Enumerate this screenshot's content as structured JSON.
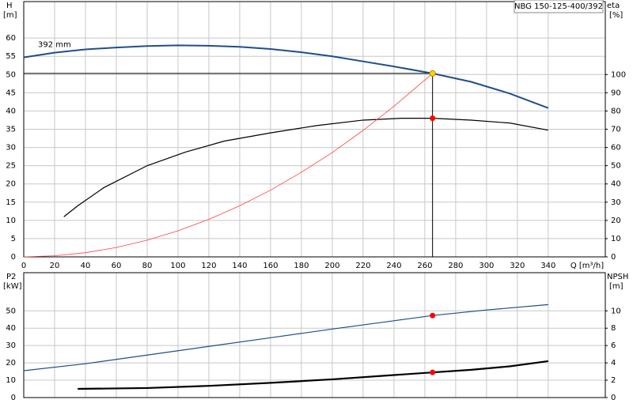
{
  "chart_data": [
    {
      "type": "line",
      "title": "NBG 150-125-400/392",
      "ylabel": "H",
      "ylabel_unit": "[m]",
      "y2label": "eta",
      "y2label_unit": "[%]",
      "xlabel": "Q [m³/h]",
      "xlim": [
        0,
        377
      ],
      "xticks": [
        0,
        20,
        40,
        60,
        80,
        100,
        120,
        140,
        160,
        180,
        200,
        220,
        240,
        260,
        280,
        300,
        320,
        340
      ],
      "ylim": [
        0,
        70
      ],
      "yticks": [
        0,
        5,
        10,
        15,
        20,
        25,
        30,
        35,
        40,
        45,
        50,
        55,
        60
      ],
      "y2lim": [
        0,
        140
      ],
      "y2ticks": [
        0,
        10,
        20,
        30,
        40,
        50,
        60,
        70,
        80,
        90,
        100
      ],
      "grid": true,
      "series": [
        {
          "name": "392 mm",
          "color": "#1f4e8c",
          "width": 2,
          "x": [
            0,
            20,
            40,
            60,
            80,
            100,
            120,
            140,
            160,
            180,
            200,
            220,
            240,
            265,
            290,
            315,
            340
          ],
          "values": [
            54.7,
            56,
            56.9,
            57.4,
            57.8,
            58,
            57.9,
            57.6,
            57,
            56.1,
            55,
            53.6,
            52.2,
            50.3,
            48,
            44.8,
            40.8
          ]
        },
        {
          "color": "#000000",
          "width": 1.2,
          "axis": "y2",
          "x": [
            26,
            35,
            52,
            80,
            105,
            130,
            160,
            190,
            220,
            245,
            265,
            290,
            315,
            340
          ],
          "values": [
            22,
            28,
            38,
            50,
            57.5,
            63.5,
            68,
            72,
            75,
            76,
            76,
            75,
            73.4,
            69.5
          ]
        },
        {
          "color": "#ff4040",
          "width": 0.8,
          "x": [
            0,
            20,
            40,
            60,
            80,
            100,
            120,
            140,
            160,
            180,
            200,
            220,
            240,
            265
          ],
          "values": [
            0,
            0.29,
            1.15,
            2.58,
            4.58,
            7.16,
            10.3,
            14,
            18.3,
            23.2,
            28.6,
            34.7,
            41.3,
            50.3
          ]
        }
      ],
      "operating_point": {
        "x": 265,
        "y": 50.3
      },
      "points": [
        {
          "x": 265,
          "y": 50.3,
          "color": "#ffd700"
        },
        {
          "x": 265,
          "y": 76,
          "axis": "y2",
          "color": "#ff0000"
        }
      ]
    },
    {
      "type": "line",
      "ylabel": "P2",
      "ylabel_unit": "[kW]",
      "y2label": "NPSH",
      "y2label_unit": "[m]",
      "xlim": [
        0,
        377
      ],
      "xticks": [
        0,
        20,
        40,
        60,
        80,
        100,
        120,
        140,
        160,
        180,
        200,
        220,
        240,
        260,
        280,
        300,
        320,
        340
      ],
      "ylim": [
        0,
        72
      ],
      "yticks": [
        0,
        10,
        20,
        30,
        40,
        50
      ],
      "y2lim": [
        0,
        14.4
      ],
      "y2ticks": [
        0,
        2,
        4,
        6,
        8,
        10
      ],
      "grid": true,
      "series": [
        {
          "color": "#1f4e8c",
          "width": 1.2,
          "x": [
            0,
            40,
            80,
            120,
            160,
            200,
            240,
            265,
            300,
            340
          ],
          "values": [
            15.5,
            19.5,
            24.5,
            29.5,
            34.5,
            39.5,
            44.3,
            47.3,
            50.5,
            53.6
          ]
        },
        {
          "color": "#000000",
          "width": 2.2,
          "axis": "y2",
          "x": [
            35,
            80,
            120,
            160,
            200,
            240,
            265,
            290,
            315,
            340
          ],
          "values": [
            1,
            1.1,
            1.35,
            1.7,
            2.1,
            2.6,
            2.9,
            3.2,
            3.6,
            4.2
          ]
        }
      ],
      "points": [
        {
          "x": 265,
          "y": 47.3,
          "color": "#ff0000"
        },
        {
          "x": 265,
          "y": 2.9,
          "axis": "y2",
          "color": "#ff0000"
        }
      ]
    }
  ]
}
